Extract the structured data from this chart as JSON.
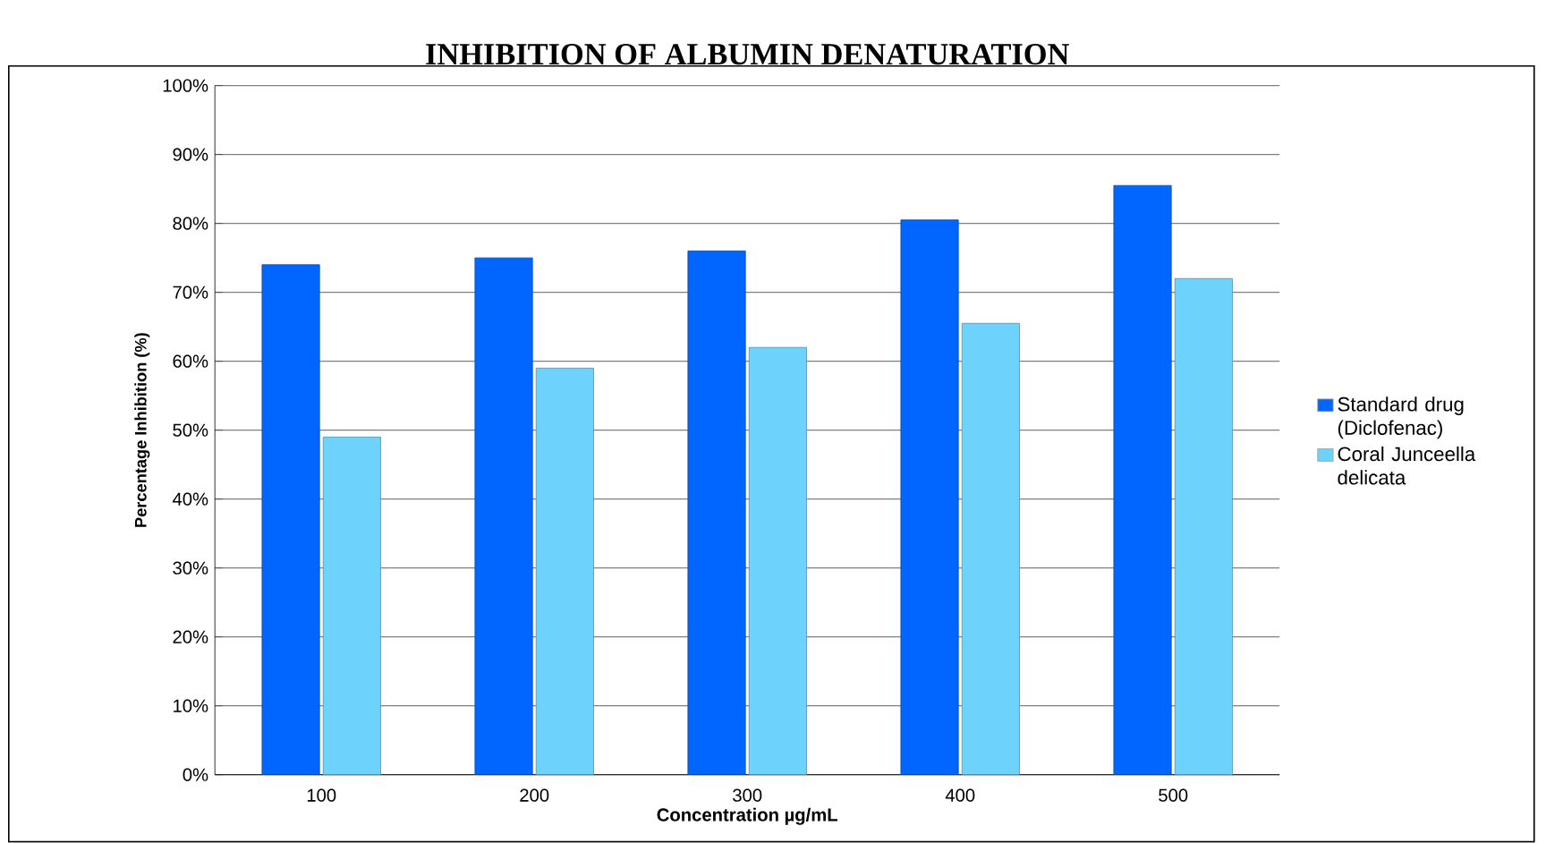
{
  "chart_data": {
    "type": "bar",
    "title": "INHIBITION OF ALBUMIN DENATURATION",
    "xlabel": "Concentration µg/mL",
    "ylabel": "Percentage Inhibition (%)",
    "categories": [
      "100",
      "200",
      "300",
      "400",
      "500"
    ],
    "series": [
      {
        "name": "Standard drug (Diclofenac)",
        "color": "#0066ff",
        "values": [
          74,
          75,
          76,
          80.5,
          85.5
        ]
      },
      {
        "name": "Coral Junceella delicata",
        "color": "#6dd3fc",
        "values": [
          49,
          59,
          62,
          65.5,
          72
        ]
      }
    ],
    "ylim": [
      0,
      100
    ],
    "yticks": [
      {
        "value": 0,
        "label": "0%"
      },
      {
        "value": 10,
        "label": "10%"
      },
      {
        "value": 20,
        "label": "20%"
      },
      {
        "value": 30,
        "label": "30%"
      },
      {
        "value": 40,
        "label": "40%"
      },
      {
        "value": 50,
        "label": "50%"
      },
      {
        "value": 60,
        "label": "60%"
      },
      {
        "value": 70,
        "label": "70%"
      },
      {
        "value": 80,
        "label": "80%"
      },
      {
        "value": 90,
        "label": "90%"
      },
      {
        "value": 100,
        "label": "100%"
      }
    ],
    "grid": "y",
    "legend": "right"
  }
}
